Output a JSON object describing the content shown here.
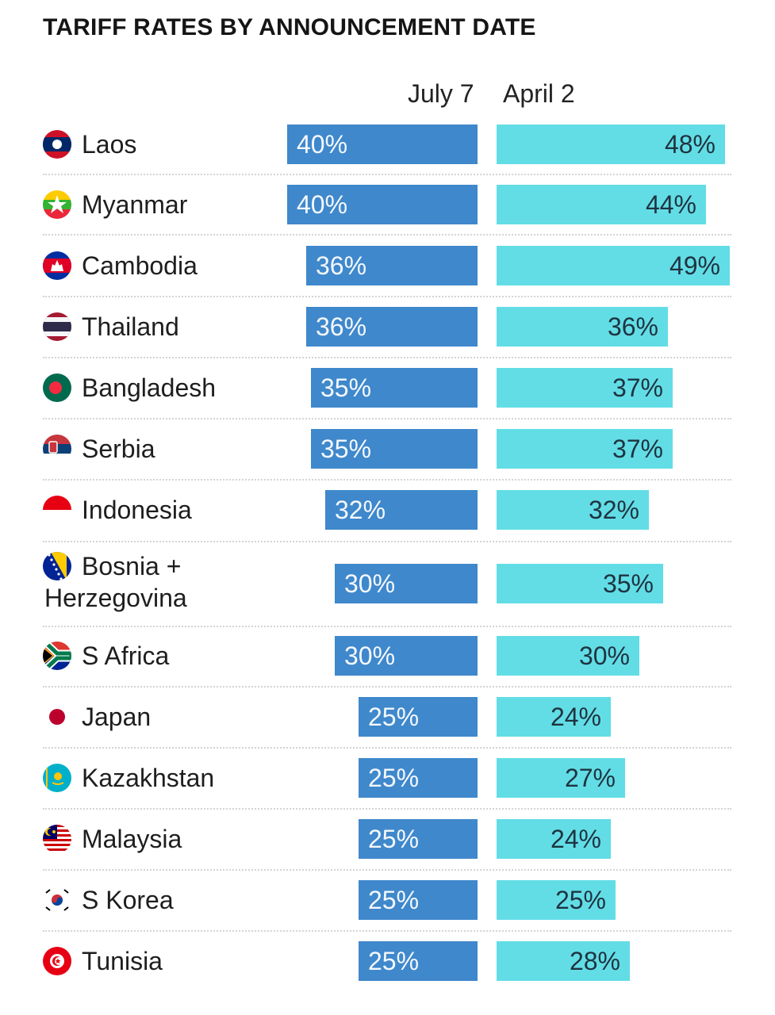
{
  "chart_data": {
    "type": "bar",
    "title": "TARIFF RATES BY ANNOUNCEMENT DATE",
    "orientation": "horizontal",
    "value_suffix": "%",
    "categories": [
      "Laos",
      "Myanmar",
      "Cambodia",
      "Thailand",
      "Bangladesh",
      "Serbia",
      "Indonesia",
      "Bosnia + Herzegovina",
      "S Africa",
      "Japan",
      "Kazakhstan",
      "Malaysia",
      "S Korea",
      "Tunisia"
    ],
    "series": [
      {
        "name": "July 7",
        "color": "#3f88cc",
        "values": [
          40,
          40,
          36,
          36,
          35,
          35,
          32,
          30,
          30,
          25,
          25,
          25,
          25,
          25
        ],
        "labels": [
          "40%",
          "40%",
          "36%",
          "36%",
          "35%",
          "35%",
          "32%",
          "30%",
          "30%",
          "25%",
          "25%",
          "25%",
          "25%",
          "25%"
        ]
      },
      {
        "name": "April 2",
        "color": "#62dde6",
        "values": [
          48,
          44,
          49,
          36,
          37,
          37,
          32,
          35,
          30,
          24,
          27,
          24,
          25,
          28
        ],
        "labels": [
          "48%",
          "44%",
          "49%",
          "36%",
          "37%",
          "37%",
          "32%",
          "35%",
          "30%",
          "24%",
          "27%",
          "24%",
          "25%",
          "28%"
        ]
      }
    ],
    "flag_icons": [
      "laos-flag-icon",
      "myanmar-flag-icon",
      "cambodia-flag-icon",
      "thailand-flag-icon",
      "bangladesh-flag-icon",
      "serbia-flag-icon",
      "indonesia-flag-icon",
      "bosnia-flag-icon",
      "south-africa-flag-icon",
      "japan-flag-icon",
      "kazakhstan-flag-icon",
      "malaysia-flag-icon",
      "south-korea-flag-icon",
      "tunisia-flag-icon"
    ],
    "grid": false,
    "legend": "top column headers"
  }
}
